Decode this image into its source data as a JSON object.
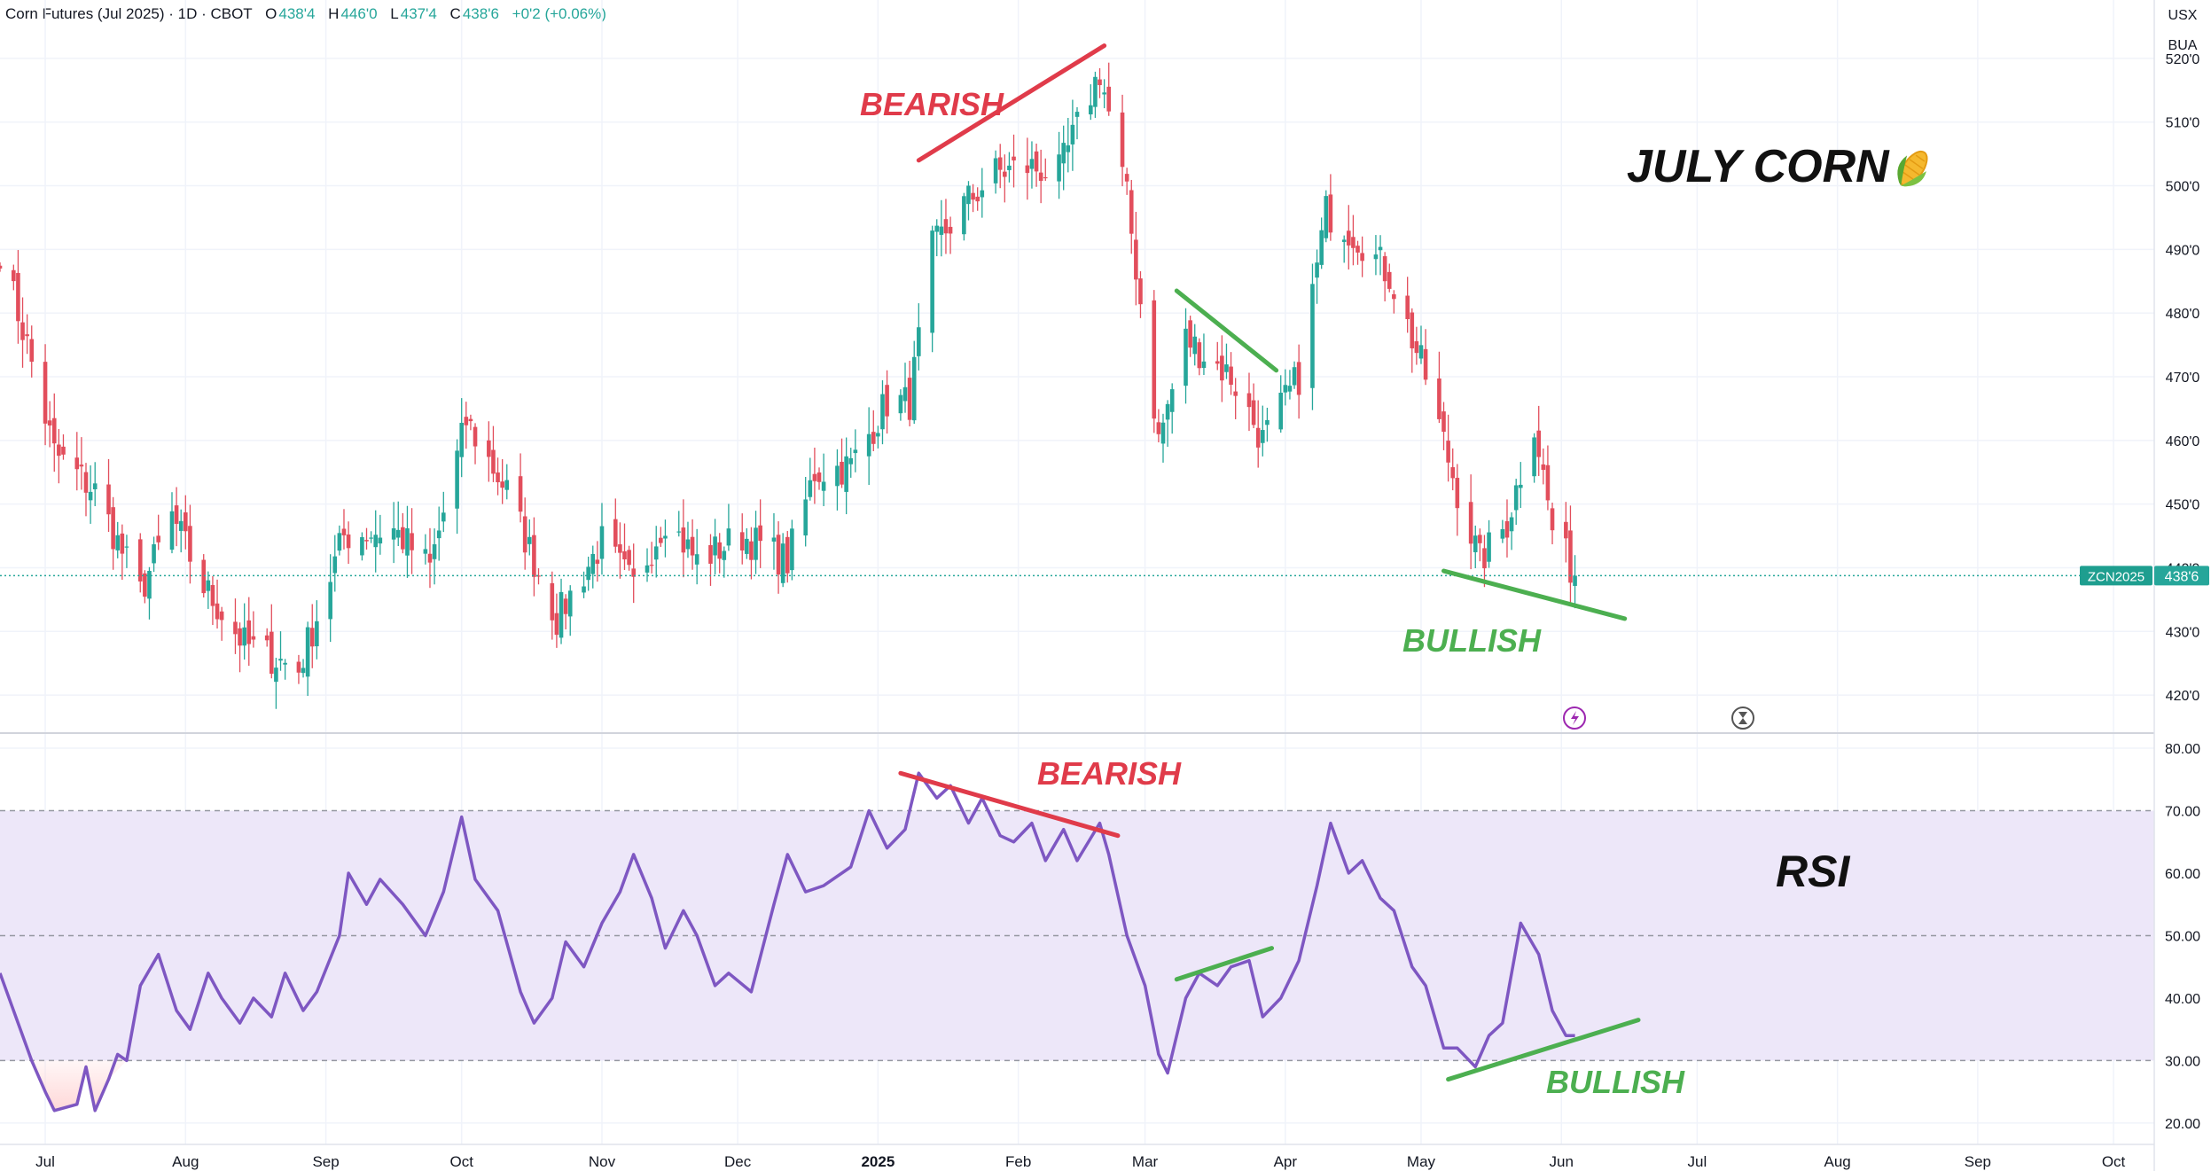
{
  "header": {
    "symbol": "Corn Futures (Jul 2025) · 1D · CBOT",
    "open_label": "O",
    "open": "438'4",
    "high_label": "H",
    "high": "446'0",
    "low_label": "L",
    "low": "437'4",
    "close_label": "C",
    "close": "438'6",
    "change": "+0'2 (+0.06%)"
  },
  "currency": "USX",
  "unit": "BUA",
  "title": "JULY CORN",
  "title_icon": "corn-icon",
  "rsi_label": "RSI",
  "price_tag": {
    "symbol": "ZCN2025",
    "value": "438'6"
  },
  "annotations": {
    "price": [
      {
        "text": "BEARISH",
        "color": "#e03b4a"
      },
      {
        "text": "BULLISH",
        "color": "#4caf50"
      }
    ],
    "rsi": [
      {
        "text": "BEARISH",
        "color": "#e03b4a"
      },
      {
        "text": "BULLISH",
        "color": "#4caf50"
      }
    ]
  },
  "colors": {
    "up": "#26a69a",
    "down": "#e24e5c",
    "rsi_line": "#7e57c2",
    "rsi_band": "#ede7f9",
    "accent": "#26a69a"
  },
  "chart_data": [
    {
      "type": "candlestick",
      "y_tick_labels": [
        "420'0",
        "430'0",
        "440'0",
        "450'0",
        "460'0",
        "470'0",
        "480'0",
        "490'0",
        "500'0",
        "510'0",
        "520'0"
      ],
      "ylim": [
        415,
        525
      ],
      "x_tick_labels": [
        "Jul",
        "Aug",
        "Sep",
        "Oct",
        "Nov",
        "Dec",
        "2025",
        "Feb",
        "Mar",
        "Apr",
        "May",
        "Jun",
        "Jul",
        "Aug",
        "Sep",
        "Oct"
      ],
      "x_range": [
        "2024-06-21",
        "2025-10-10"
      ],
      "last_close": 438.75,
      "trendlines": [
        {
          "from": [
            "2025-01-10",
            504
          ],
          "to": [
            "2025-02-20",
            522
          ],
          "color": "#e03b4a"
        },
        {
          "from": [
            "2025-03-08",
            483.5
          ],
          "to": [
            "2025-03-30",
            471
          ],
          "color": "#4caf50"
        },
        {
          "from": [
            "2025-05-06",
            439.5
          ],
          "to": [
            "2025-06-15",
            432
          ],
          "color": "#4caf50"
        }
      ],
      "series_anchors": [
        [
          "2024-06-21",
          490
        ],
        [
          "2024-06-27",
          475
        ],
        [
          "2024-07-03",
          458
        ],
        [
          "2024-07-12",
          452
        ],
        [
          "2024-07-22",
          436
        ],
        [
          "2024-07-29",
          448
        ],
        [
          "2024-08-05",
          437
        ],
        [
          "2024-08-14",
          428
        ],
        [
          "2024-08-26",
          424
        ],
        [
          "2024-09-05",
          445
        ],
        [
          "2024-09-16",
          446
        ],
        [
          "2024-09-24",
          440
        ],
        [
          "2024-10-02",
          463
        ],
        [
          "2024-10-11",
          452
        ],
        [
          "2024-10-22",
          432
        ],
        [
          "2024-11-01",
          444
        ],
        [
          "2024-11-08",
          437
        ],
        [
          "2024-11-15",
          448
        ],
        [
          "2024-11-22",
          441
        ],
        [
          "2024-12-02",
          445
        ],
        [
          "2024-12-12",
          441
        ],
        [
          "2024-12-18",
          455
        ],
        [
          "2024-12-26",
          456
        ],
        [
          "2025-01-03",
          466
        ],
        [
          "2025-01-08",
          466
        ],
        [
          "2025-01-13",
          490
        ],
        [
          "2025-01-20",
          497
        ],
        [
          "2025-01-27",
          502
        ],
        [
          "2025-02-03",
          503
        ],
        [
          "2025-02-10",
          502
        ],
        [
          "2025-02-19",
          518
        ],
        [
          "2025-02-25",
          498
        ],
        [
          "2025-03-04",
          460
        ],
        [
          "2025-03-10",
          476
        ],
        [
          "2025-03-20",
          470
        ],
        [
          "2025-03-27",
          460
        ],
        [
          "2025-04-04",
          470
        ],
        [
          "2025-04-10",
          496
        ],
        [
          "2025-04-17",
          492
        ],
        [
          "2025-04-24",
          486
        ],
        [
          "2025-05-02",
          470
        ],
        [
          "2025-05-09",
          452
        ],
        [
          "2025-05-14",
          441
        ],
        [
          "2025-05-20",
          447
        ],
        [
          "2025-05-26",
          463
        ],
        [
          "2025-05-30",
          446
        ],
        [
          "2025-06-04",
          438.75
        ]
      ]
    },
    {
      "type": "line",
      "series": [
        {
          "name": "",
          "indicator": "RSI"
        }
      ],
      "y_tick_labels": [
        "20.00",
        "30.00",
        "40.00",
        "50.00",
        "60.00",
        "70.00",
        "80.00"
      ],
      "ylim": [
        18,
        81
      ],
      "bands": [
        30,
        50,
        70
      ],
      "points": [
        [
          "2024-06-21",
          44
        ],
        [
          "2024-06-25",
          36
        ],
        [
          "2024-06-28",
          30
        ],
        [
          "2024-07-01",
          25
        ],
        [
          "2024-07-03",
          22
        ],
        [
          "2024-07-08",
          23
        ],
        [
          "2024-07-10",
          29
        ],
        [
          "2024-07-12",
          22
        ],
        [
          "2024-07-15",
          27
        ],
        [
          "2024-07-17",
          31
        ],
        [
          "2024-07-19",
          30
        ],
        [
          "2024-07-22",
          42
        ],
        [
          "2024-07-26",
          47
        ],
        [
          "2024-07-30",
          38
        ],
        [
          "2024-08-02",
          35
        ],
        [
          "2024-08-06",
          44
        ],
        [
          "2024-08-09",
          40
        ],
        [
          "2024-08-13",
          36
        ],
        [
          "2024-08-16",
          40
        ],
        [
          "2024-08-20",
          37
        ],
        [
          "2024-08-23",
          44
        ],
        [
          "2024-08-27",
          38
        ],
        [
          "2024-08-30",
          41
        ],
        [
          "2024-09-04",
          50
        ],
        [
          "2024-09-06",
          60
        ],
        [
          "2024-09-10",
          55
        ],
        [
          "2024-09-13",
          59
        ],
        [
          "2024-09-18",
          55
        ],
        [
          "2024-09-23",
          50
        ],
        [
          "2024-09-27",
          57
        ],
        [
          "2024-10-01",
          69
        ],
        [
          "2024-10-04",
          59
        ],
        [
          "2024-10-09",
          54
        ],
        [
          "2024-10-14",
          41
        ],
        [
          "2024-10-17",
          36
        ],
        [
          "2024-10-21",
          40
        ],
        [
          "2024-10-24",
          49
        ],
        [
          "2024-10-28",
          45
        ],
        [
          "2024-11-01",
          52
        ],
        [
          "2024-11-05",
          57
        ],
        [
          "2024-11-08",
          63
        ],
        [
          "2024-11-12",
          56
        ],
        [
          "2024-11-15",
          48
        ],
        [
          "2024-11-19",
          54
        ],
        [
          "2024-11-22",
          50
        ],
        [
          "2024-11-26",
          42
        ],
        [
          "2024-11-29",
          44
        ],
        [
          "2024-12-04",
          41
        ],
        [
          "2024-12-09",
          55
        ],
        [
          "2024-12-12",
          63
        ],
        [
          "2024-12-16",
          57
        ],
        [
          "2024-12-20",
          58
        ],
        [
          "2024-12-26",
          61
        ],
        [
          "2024-12-30",
          70
        ],
        [
          "2025-01-03",
          64
        ],
        [
          "2025-01-07",
          67
        ],
        [
          "2025-01-10",
          76
        ],
        [
          "2025-01-14",
          72
        ],
        [
          "2025-01-17",
          74
        ],
        [
          "2025-01-21",
          68
        ],
        [
          "2025-01-24",
          72
        ],
        [
          "2025-01-28",
          66
        ],
        [
          "2025-01-31",
          65
        ],
        [
          "2025-02-04",
          68
        ],
        [
          "2025-02-07",
          62
        ],
        [
          "2025-02-11",
          67
        ],
        [
          "2025-02-14",
          62
        ],
        [
          "2025-02-19",
          68
        ],
        [
          "2025-02-21",
          63
        ],
        [
          "2025-02-25",
          50
        ],
        [
          "2025-03-01",
          42
        ],
        [
          "2025-03-04",
          31
        ],
        [
          "2025-03-06",
          28
        ],
        [
          "2025-03-10",
          40
        ],
        [
          "2025-03-13",
          44
        ],
        [
          "2025-03-17",
          42
        ],
        [
          "2025-03-20",
          45
        ],
        [
          "2025-03-24",
          46
        ],
        [
          "2025-03-27",
          37
        ],
        [
          "2025-03-31",
          40
        ],
        [
          "2025-04-04",
          46
        ],
        [
          "2025-04-08",
          58
        ],
        [
          "2025-04-11",
          68
        ],
        [
          "2025-04-15",
          60
        ],
        [
          "2025-04-18",
          62
        ],
        [
          "2025-04-22",
          56
        ],
        [
          "2025-04-25",
          54
        ],
        [
          "2025-04-29",
          45
        ],
        [
          "2025-05-02",
          42
        ],
        [
          "2025-05-06",
          32
        ],
        [
          "2025-05-09",
          32
        ],
        [
          "2025-05-13",
          29
        ],
        [
          "2025-05-16",
          34
        ],
        [
          "2025-05-19",
          36
        ],
        [
          "2025-05-23",
          52
        ],
        [
          "2025-05-27",
          47
        ],
        [
          "2025-05-30",
          38
        ],
        [
          "2025-06-02",
          34
        ],
        [
          "2025-06-04",
          34
        ]
      ],
      "trendlines": [
        {
          "from": [
            "2025-01-06",
            76
          ],
          "to": [
            "2025-02-23",
            66
          ],
          "color": "#e03b4a"
        },
        {
          "from": [
            "2025-03-08",
            43
          ],
          "to": [
            "2025-03-29",
            48
          ],
          "color": "#4caf50"
        },
        {
          "from": [
            "2025-05-07",
            27
          ],
          "to": [
            "2025-06-18",
            36.5
          ],
          "color": "#4caf50"
        }
      ]
    }
  ]
}
